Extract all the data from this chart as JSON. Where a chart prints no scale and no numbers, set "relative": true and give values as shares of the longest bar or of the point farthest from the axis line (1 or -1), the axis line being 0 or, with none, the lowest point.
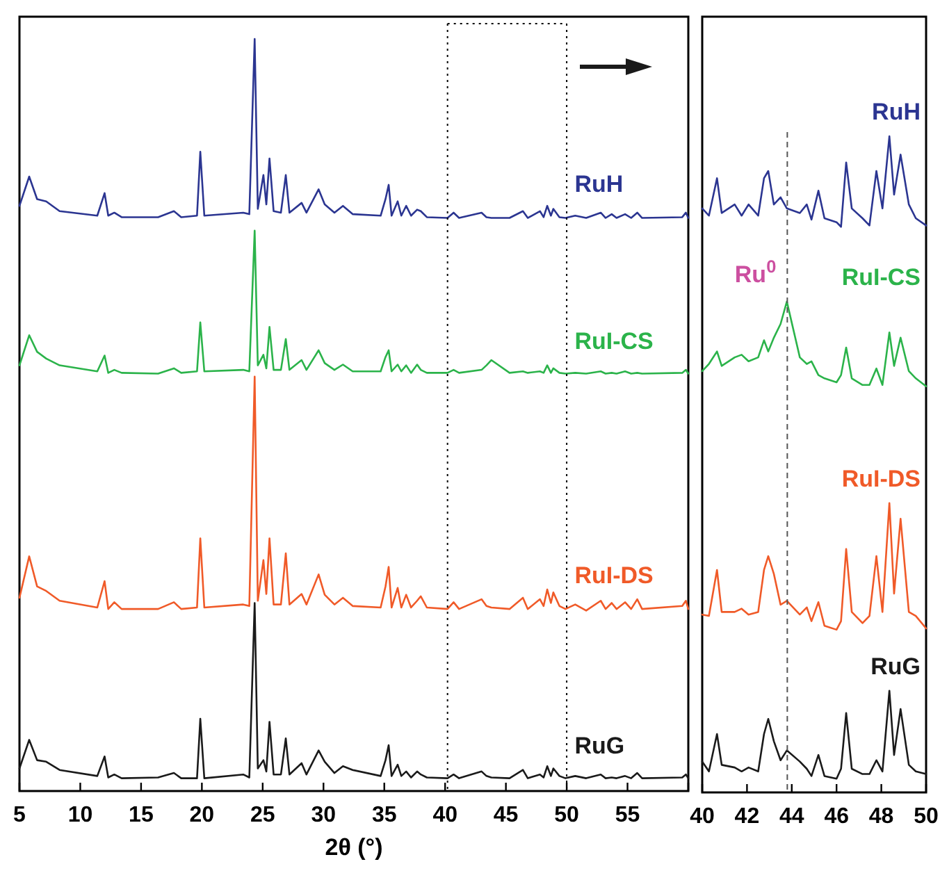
{
  "chart_data": [
    {
      "type": "line",
      "relative": true,
      "xlabel": "2θ (°)",
      "legend": false,
      "xlim": [
        5,
        60
      ],
      "xticks": [
        5,
        10,
        15,
        20,
        25,
        30,
        35,
        40,
        45,
        50,
        55,
        {
          "value": 60,
          "label": null
        }
      ],
      "x": [
        5.0,
        5.8,
        6.45,
        7.2,
        8.3,
        11.4,
        12.0,
        12.3,
        12.8,
        13.4,
        16.4,
        17.7,
        18.3,
        19.6,
        19.87,
        20.2,
        23.4,
        23.9,
        24.34,
        24.6,
        25.06,
        25.3,
        25.56,
        25.9,
        26.5,
        26.9,
        27.2,
        28.2,
        28.6,
        29.6,
        30.1,
        30.9,
        31.6,
        32.4,
        34.7,
        35.1,
        35.36,
        35.6,
        36.1,
        36.4,
        36.8,
        37.2,
        37.7,
        38.0,
        38.5,
        40.2,
        40.7,
        41.15,
        43.0,
        43.4,
        43.8,
        45.3,
        46.4,
        46.8,
        47.8,
        48.1,
        48.4,
        48.7,
        48.9,
        49.4,
        49.9,
        50.7,
        51.6,
        52.8,
        53.2,
        53.7,
        54.1,
        54.8,
        55.3,
        55.8,
        56.2,
        59.5,
        59.8,
        60
      ],
      "series": [
        {
          "name": "RuH",
          "color": "#2b3591",
          "values": [
            0.778,
            0.817,
            0.787,
            0.784,
            0.771,
            0.765,
            0.795,
            0.765,
            0.769,
            0.763,
            0.763,
            0.771,
            0.763,
            0.765,
            0.85,
            0.765,
            0.769,
            0.767,
            1,
            0.774,
            0.819,
            0.78,
            0.841,
            0.771,
            0.769,
            0.819,
            0.769,
            0.782,
            0.769,
            0.8,
            0.78,
            0.769,
            0.778,
            0.767,
            0.765,
            0.787,
            0.806,
            0.765,
            0.784,
            0.765,
            0.778,
            0.765,
            0.773,
            0.771,
            0.763,
            0.762,
            0.769,
            0.762,
            0.769,
            0.763,
            0.762,
            0.762,
            0.771,
            0.762,
            0.771,
            0.763,
            0.778,
            0.765,
            0.774,
            0.763,
            0.762,
            0.765,
            0.762,
            0.769,
            0.762,
            0.767,
            0.762,
            0.767,
            0.762,
            0.769,
            0.762,
            0.763,
            0.769,
            0.762
          ]
        },
        {
          "name": "RuI-CS",
          "color": "#2bb34a",
          "values": [
            0.566,
            0.606,
            0.584,
            0.575,
            0.566,
            0.558,
            0.579,
            0.556,
            0.56,
            0.556,
            0.555,
            0.562,
            0.556,
            0.558,
            0.623,
            0.558,
            0.56,
            0.558,
            0.745,
            0.566,
            0.58,
            0.562,
            0.617,
            0.56,
            0.56,
            0.601,
            0.56,
            0.573,
            0.56,
            0.586,
            0.569,
            0.56,
            0.567,
            0.558,
            0.558,
            0.577,
            0.586,
            0.558,
            0.567,
            0.558,
            0.566,
            0.556,
            0.567,
            0.56,
            0.556,
            0.556,
            0.56,
            0.556,
            0.56,
            0.566,
            0.573,
            0.556,
            0.558,
            0.556,
            0.558,
            0.556,
            0.566,
            0.556,
            0.562,
            0.556,
            0.555,
            0.556,
            0.555,
            0.558,
            0.555,
            0.556,
            0.555,
            0.558,
            0.555,
            0.556,
            0.555,
            0.556,
            0.56,
            0.555
          ]
        },
        {
          "name": "RuI-DS",
          "color": "#f05a28",
          "values": [
            0.257,
            0.312,
            0.272,
            0.266,
            0.253,
            0.244,
            0.279,
            0.242,
            0.251,
            0.242,
            0.242,
            0.251,
            0.242,
            0.244,
            0.336,
            0.244,
            0.248,
            0.246,
            0.551,
            0.253,
            0.307,
            0.262,
            0.336,
            0.248,
            0.248,
            0.316,
            0.248,
            0.262,
            0.248,
            0.288,
            0.261,
            0.248,
            0.257,
            0.246,
            0.244,
            0.272,
            0.298,
            0.244,
            0.27,
            0.244,
            0.261,
            0.244,
            0.253,
            0.259,
            0.244,
            0.242,
            0.251,
            0.242,
            0.255,
            0.246,
            0.244,
            0.242,
            0.257,
            0.242,
            0.255,
            0.246,
            0.268,
            0.25,
            0.264,
            0.246,
            0.242,
            0.248,
            0.24,
            0.253,
            0.242,
            0.25,
            0.242,
            0.251,
            0.242,
            0.255,
            0.242,
            0.246,
            0.253,
            0.242
          ]
        },
        {
          "name": "RuG",
          "color": "#1a1a1a",
          "values": [
            0.03,
            0.068,
            0.041,
            0.039,
            0.028,
            0.02,
            0.046,
            0.018,
            0.022,
            0.017,
            0.018,
            0.024,
            0.017,
            0.017,
            0.096,
            0.017,
            0.022,
            0.018,
            0.25,
            0.03,
            0.041,
            0.026,
            0.092,
            0.022,
            0.022,
            0.07,
            0.022,
            0.037,
            0.022,
            0.054,
            0.039,
            0.024,
            0.033,
            0.028,
            0.02,
            0.041,
            0.061,
            0.02,
            0.035,
            0.02,
            0.026,
            0.018,
            0.026,
            0.022,
            0.018,
            0.017,
            0.022,
            0.017,
            0.026,
            0.02,
            0.018,
            0.017,
            0.028,
            0.017,
            0.022,
            0.018,
            0.033,
            0.02,
            0.03,
            0.02,
            0.017,
            0.02,
            0.017,
            0.022,
            0.017,
            0.018,
            0.017,
            0.02,
            0.017,
            0.024,
            0.017,
            0.018,
            0.022,
            0.017
          ]
        }
      ],
      "ref_lines": [
        {
          "axis": "x",
          "value": 40.2,
          "line_style": "dotted",
          "color": "#000000"
        },
        {
          "axis": "x",
          "value": 50,
          "line_style": "dotted",
          "color": "#000000"
        }
      ]
    },
    {
      "type": "line",
      "relative": true,
      "legend": false,
      "xlim": [
        40,
        50
      ],
      "xticks": [
        40,
        42,
        44,
        46,
        48,
        50
      ],
      "x": [
        40.0,
        40.3,
        40.66,
        40.87,
        41.45,
        41.76,
        42.07,
        42.5,
        42.76,
        42.95,
        43.2,
        43.5,
        43.78,
        44.36,
        44.67,
        44.88,
        45.19,
        45.46,
        46.0,
        46.2,
        46.43,
        46.68,
        47.16,
        47.47,
        47.78,
        48.05,
        48.36,
        48.57,
        48.86,
        49.23,
        49.54,
        50.0
      ],
      "series": [
        {
          "name": "RuH",
          "color": "#2b3591",
          "values": [
            0.89,
            0.879,
            0.936,
            0.883,
            0.896,
            0.879,
            0.896,
            0.879,
            0.936,
            0.947,
            0.896,
            0.907,
            0.89,
            0.883,
            0.896,
            0.873,
            0.917,
            0.875,
            0.869,
            0.862,
            0.96,
            0.89,
            0.875,
            0.864,
            0.947,
            0.89,
            1,
            0.911,
            0.972,
            0.896,
            0.875,
            0.864
          ]
        },
        {
          "name": "RuI-CS",
          "color": "#2bb34a",
          "values": [
            0.642,
            0.653,
            0.672,
            0.65,
            0.663,
            0.667,
            0.657,
            0.663,
            0.689,
            0.672,
            0.693,
            0.714,
            0.748,
            0.663,
            0.653,
            0.657,
            0.636,
            0.631,
            0.625,
            0.636,
            0.678,
            0.631,
            0.621,
            0.621,
            0.646,
            0.621,
            0.701,
            0.65,
            0.693,
            0.642,
            0.631,
            0.619
          ]
        },
        {
          "name": "RuI-DS",
          "color": "#f05a28",
          "values": [
            0.271,
            0.269,
            0.339,
            0.275,
            0.275,
            0.28,
            0.271,
            0.275,
            0.339,
            0.36,
            0.333,
            0.286,
            0.292,
            0.271,
            0.282,
            0.261,
            0.29,
            0.254,
            0.248,
            0.261,
            0.371,
            0.275,
            0.258,
            0.269,
            0.36,
            0.275,
            0.441,
            0.303,
            0.417,
            0.275,
            0.269,
            0.25
          ]
        },
        {
          "name": "RuG",
          "color": "#1a1a1a",
          "values": [
            0.047,
            0.032,
            0.089,
            0.042,
            0.038,
            0.032,
            0.038,
            0.032,
            0.089,
            0.112,
            0.078,
            0.049,
            0.064,
            0.047,
            0.036,
            0.025,
            0.057,
            0.025,
            0.021,
            0.036,
            0.121,
            0.036,
            0.028,
            0.028,
            0.049,
            0.032,
            0.155,
            0.057,
            0.127,
            0.042,
            0.032,
            0.028
          ]
        }
      ],
      "ref_lines": [
        {
          "axis": "x",
          "value": 43.8,
          "label": "Ru$^{0}$",
          "color": "#555555",
          "line_style": "dashed"
        }
      ]
    }
  ]
}
